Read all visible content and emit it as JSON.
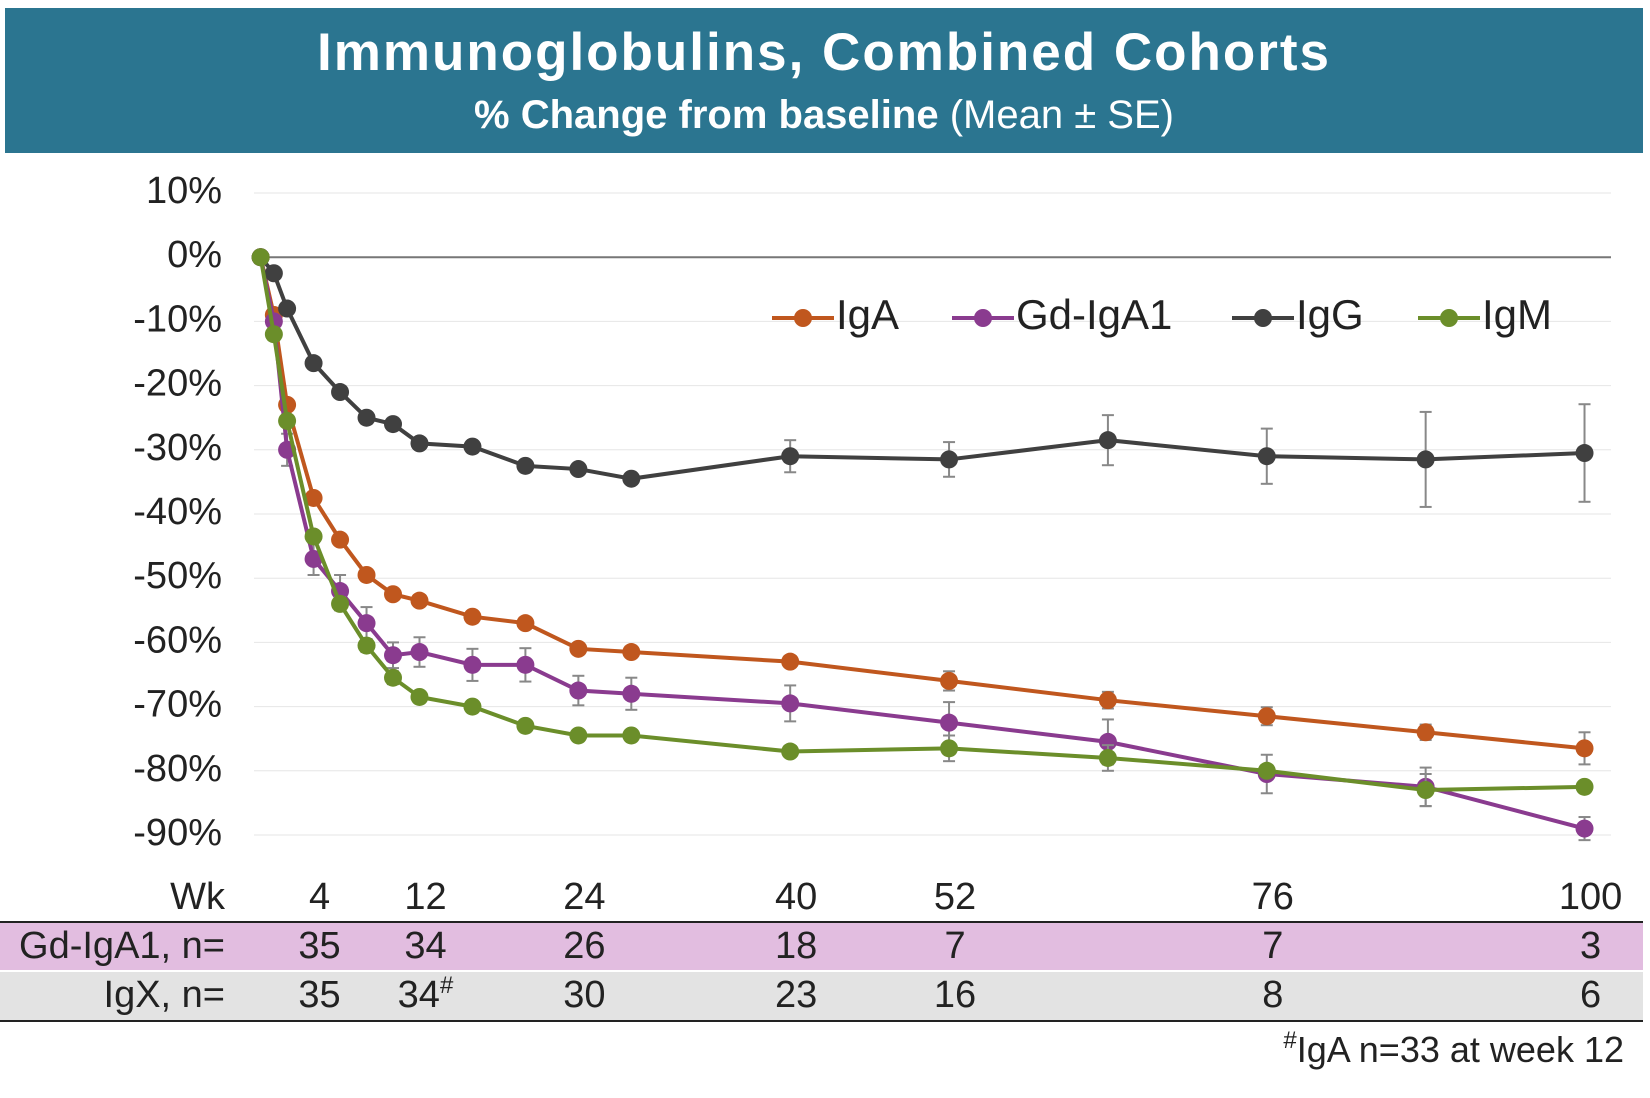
{
  "chart_data": {
    "type": "line",
    "title": "Immunoglobulins, Combined Cohorts",
    "subtitle_bold": "% Change from baseline",
    "subtitle_normal": "(Mean ± SE)",
    "x_label": "Wk",
    "x": [
      0,
      1,
      2,
      4,
      6,
      8,
      10,
      12,
      16,
      20,
      24,
      28,
      40,
      52,
      64,
      76,
      88,
      100
    ],
    "xlim": [
      -0.5,
      102
    ],
    "xticks": [
      4,
      12,
      24,
      40,
      52,
      76,
      100
    ],
    "ylim": [
      -90,
      10
    ],
    "yticks": [
      {
        "value": 10,
        "label": "10%"
      },
      {
        "value": 0,
        "label": "0%"
      },
      {
        "value": -10,
        "label": "-10%"
      },
      {
        "value": -20,
        "label": "-20%"
      },
      {
        "value": -30,
        "label": "-30%"
      },
      {
        "value": -40,
        "label": "-40%"
      },
      {
        "value": -50,
        "label": "-50%"
      },
      {
        "value": -60,
        "label": "-60%"
      },
      {
        "value": -70,
        "label": "-70%"
      },
      {
        "value": -80,
        "label": "-80%"
      },
      {
        "value": -90,
        "label": "-90%"
      }
    ],
    "grid": true,
    "series": [
      {
        "name": "IgA",
        "color": "#c0571e",
        "values": [
          0,
          -9,
          -23,
          -37.5,
          -44,
          -49.5,
          -52.5,
          -53.5,
          -56,
          -57,
          -61,
          -61.5,
          -63,
          -66,
          -69,
          -71.5,
          -74,
          -76.5
        ],
        "errors": [
          0,
          0,
          0,
          0,
          0,
          0,
          0,
          0,
          0,
          0,
          0,
          0,
          0,
          1.5,
          1.3,
          1.4,
          1.2,
          2.5
        ]
      },
      {
        "name": "Gd-IgA1",
        "color": "#8a3b8f",
        "values": [
          0,
          -10,
          -30,
          -47,
          -52,
          -57,
          -62,
          -61.5,
          -63.5,
          -63.5,
          -67.5,
          -68,
          -69.5,
          -72.5,
          -75.5,
          -80.5,
          -82.5,
          -89
        ],
        "errors": [
          0,
          0,
          2.5,
          2.5,
          2.5,
          2.5,
          2,
          2.3,
          2.5,
          2.6,
          2.3,
          2.5,
          2.8,
          3.2,
          3.5,
          3,
          3,
          1.8
        ]
      },
      {
        "name": "IgG",
        "color": "#404040",
        "values": [
          0,
          -2.5,
          -8,
          -16.5,
          -21,
          -25,
          -26,
          -29,
          -29.5,
          -32.5,
          -33,
          -34.5,
          -31,
          -31.5,
          -28.5,
          -31,
          -31.5,
          -30.5
        ],
        "errors": [
          0,
          0,
          0,
          0,
          0,
          0,
          0,
          0,
          0,
          0.8,
          0.8,
          0.8,
          2.5,
          2.7,
          3.9,
          4.3,
          7.4,
          7.6
        ]
      },
      {
        "name": "IgM",
        "color": "#6b8e2a",
        "values": [
          0,
          -12,
          -25.5,
          -43.5,
          -54,
          -60.5,
          -65.5,
          -68.5,
          -70,
          -73,
          -74.5,
          -74.5,
          -77,
          -76.5,
          -78,
          -80,
          -83,
          -82.5
        ],
        "errors": [
          0,
          0,
          0,
          0,
          1,
          1,
          1,
          0,
          0,
          0,
          0,
          0,
          0,
          2,
          2,
          0,
          2.5,
          0
        ]
      }
    ],
    "legend": "top-right",
    "table": {
      "rows": [
        {
          "label": "Gd-IgA1, n=",
          "values": [
            35,
            34,
            26,
            18,
            7,
            7,
            3
          ],
          "superscripts": [
            null,
            null,
            null,
            null,
            null,
            null,
            null
          ]
        },
        {
          "label": "IgX, n=",
          "values": [
            35,
            34,
            30,
            23,
            16,
            8,
            6
          ],
          "superscripts": [
            null,
            "#",
            null,
            null,
            null,
            null,
            null
          ]
        }
      ]
    },
    "footnote": {
      "mark": "#",
      "text": "IgA n=33 at week 12"
    }
  }
}
